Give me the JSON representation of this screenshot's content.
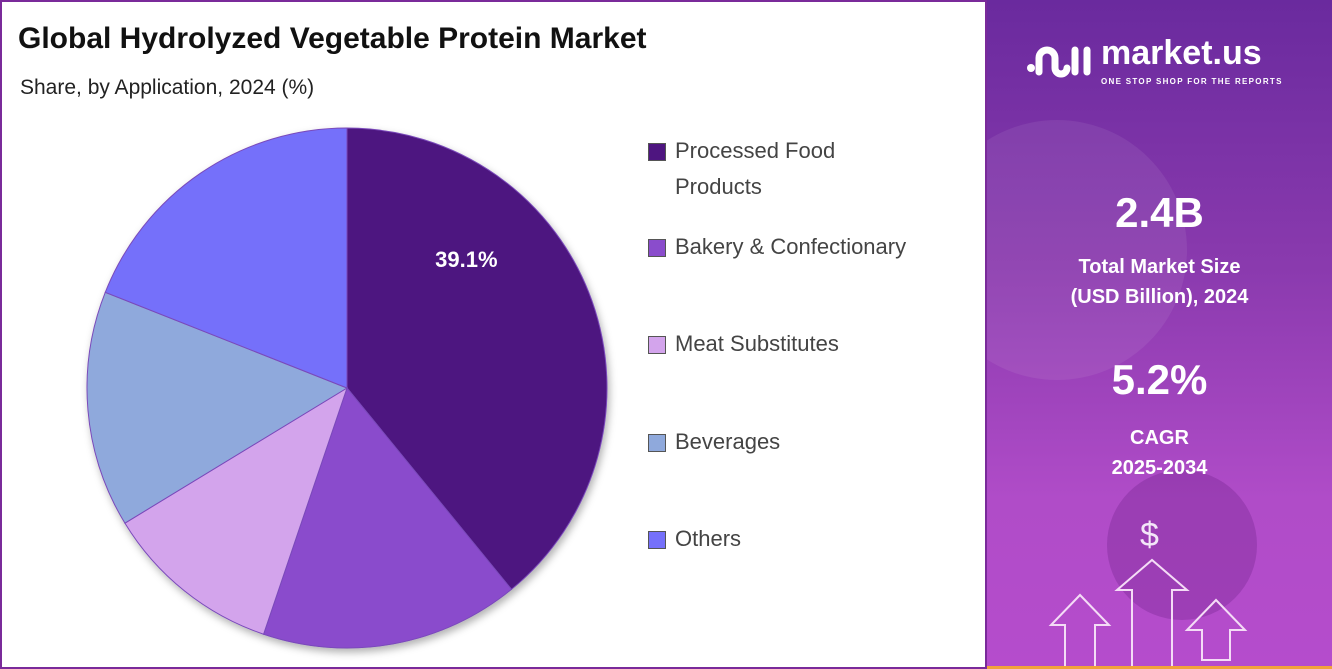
{
  "header": {
    "title": "Global Hydrolyzed Vegetable Protein Market",
    "subtitle": "Share, by Application, 2024 (%)"
  },
  "chart_data": {
    "type": "pie",
    "title": "Global Hydrolyzed Vegetable Protein Market",
    "subtitle": "Share, by Application, 2024 (%)",
    "categories": [
      "Processed Food Products",
      "Bakery & Confectionary",
      "Meat Substitutes",
      "Beverages",
      "Others"
    ],
    "values": [
      39.1,
      16.1,
      11.1,
      14.7,
      19.0
    ],
    "colors": [
      "#4e1580",
      "#8a4ccc",
      "#d3a4ec",
      "#8fa9dc",
      "#7570fa"
    ],
    "data_labels": [
      {
        "category": "Processed Food Products",
        "text": "39.1%"
      }
    ],
    "legend_placement": "right",
    "start": "top",
    "direction": "clockwise"
  },
  "legend": [
    {
      "line1": "Processed Food",
      "line2": "Products"
    },
    {
      "line1": "Bakery & Confectionary"
    },
    {
      "line1": "Meat Substitutes"
    },
    {
      "line1": "Beverages"
    },
    {
      "line1": "Others"
    }
  ],
  "sidebar": {
    "logo_name": "market.us",
    "logo_tagline": "ONE STOP SHOP FOR THE REPORTS",
    "market_size_value": "2.4B",
    "market_size_label1": "Total Market Size",
    "market_size_label2": "(USD Billion), 2024",
    "cagr_value": "5.2%",
    "cagr_label1": "CAGR",
    "cagr_label2": "2025-2034",
    "dollar_symbol": "$"
  }
}
